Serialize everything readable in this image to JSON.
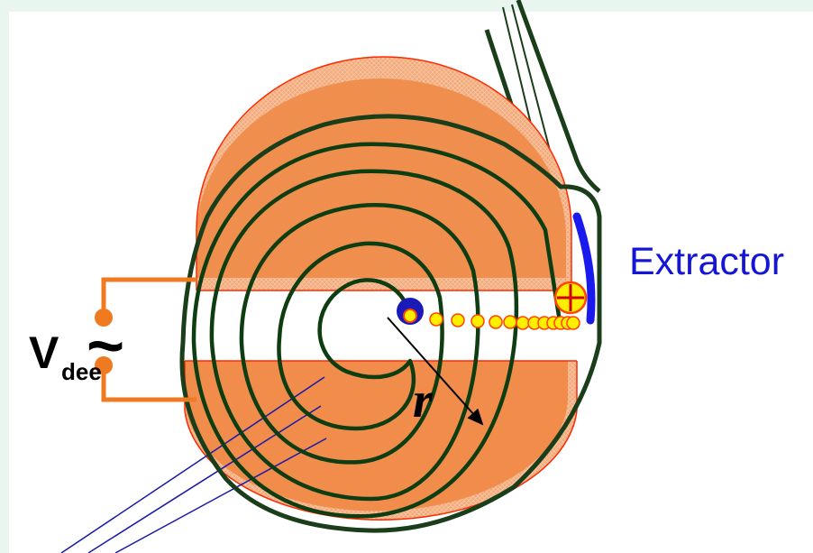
{
  "labels": {
    "extractor": "Extractor",
    "v": "V",
    "v_sub": "dee",
    "ac_symbol": "~",
    "radius": "r"
  },
  "colors": {
    "dee_fill": "#f08a48",
    "dee_edge": "#ff2a00",
    "spiral": "#0f3d12",
    "chamber": "#1a3d1a",
    "circuit": "#f07a20",
    "extractor_plate": "#1a1aee",
    "source": "#1a1ab8",
    "particle_fill": "#ffee00",
    "particle_edge": "#ff4400",
    "beam_lines": "#1a1aa8"
  },
  "icons": {
    "ion_source": "ion-source-icon",
    "particle": "particle-icon",
    "extracted_particle": "positive-particle-icon"
  }
}
